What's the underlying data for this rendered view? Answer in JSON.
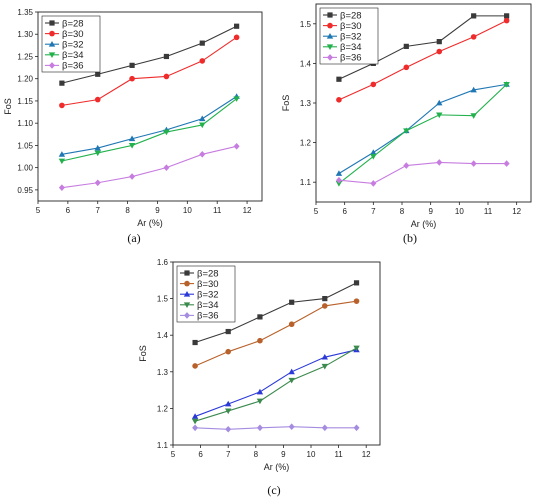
{
  "chart_data": [
    {
      "type": "line",
      "caption": "(a)",
      "xlabel": "Ar (%)",
      "ylabel": "FoS",
      "xlim": [
        5,
        12.5
      ],
      "ylim": [
        0.925,
        1.35
      ],
      "xticks": [
        5,
        6,
        7,
        8,
        9,
        10,
        11,
        12
      ],
      "yticks": [
        0.95,
        1.0,
        1.05,
        1.1,
        1.15,
        1.2,
        1.25,
        1.3,
        1.35
      ],
      "yticklabels": [
        "0.95",
        "1.00",
        "1.05",
        "1.10",
        "1.15",
        "1.20",
        "1.25",
        "1.30",
        "1.35"
      ],
      "legend_position": "top-left",
      "x": [
        5.8,
        7.0,
        8.15,
        9.3,
        10.5,
        11.65
      ],
      "series": [
        {
          "name": "β=28",
          "color": "#3a3a3a",
          "marker": "square",
          "values": [
            1.19,
            1.21,
            1.23,
            1.25,
            1.28,
            1.318
          ]
        },
        {
          "name": "β=30",
          "color": "#ef2b2b",
          "marker": "circle",
          "values": [
            1.14,
            1.153,
            1.2,
            1.205,
            1.24,
            1.293
          ]
        },
        {
          "name": "β=32",
          "color": "#1f77b4",
          "marker": "triangle-up",
          "values": [
            1.03,
            1.044,
            1.065,
            1.085,
            1.11,
            1.16
          ]
        },
        {
          "name": "β=34",
          "color": "#22b14c",
          "marker": "triangle-down",
          "values": [
            1.015,
            1.033,
            1.05,
            1.08,
            1.096,
            1.155
          ]
        },
        {
          "name": "β=36",
          "color": "#c77ce0",
          "marker": "diamond",
          "values": [
            0.955,
            0.966,
            0.98,
            1.0,
            1.03,
            1.048
          ]
        }
      ]
    },
    {
      "type": "line",
      "caption": "(b)",
      "xlabel": "Ar (%)",
      "ylabel": "FoS",
      "xlim": [
        5,
        12.5
      ],
      "ylim": [
        1.05,
        1.55
      ],
      "xticks": [
        5,
        6,
        7,
        8,
        9,
        10,
        11,
        12
      ],
      "yticks": [
        1.1,
        1.2,
        1.3,
        1.4,
        1.5
      ],
      "yticklabels": [
        "1.1",
        "1.2",
        "1.3",
        "1.4",
        "1.5"
      ],
      "legend_position": "top-left",
      "x": [
        5.8,
        7.0,
        8.15,
        9.3,
        10.5,
        11.65
      ],
      "series": [
        {
          "name": "β=28",
          "color": "#3a3a3a",
          "marker": "square",
          "values": [
            1.36,
            1.4,
            1.443,
            1.455,
            1.52,
            1.52
          ]
        },
        {
          "name": "β=30",
          "color": "#ef2b2b",
          "marker": "circle",
          "values": [
            1.308,
            1.347,
            1.39,
            1.43,
            1.467,
            1.508
          ]
        },
        {
          "name": "β=32",
          "color": "#1f77b4",
          "marker": "triangle-up",
          "values": [
            1.122,
            1.175,
            1.23,
            1.3,
            1.333,
            1.347
          ]
        },
        {
          "name": "β=34",
          "color": "#22b14c",
          "marker": "triangle-down",
          "values": [
            1.097,
            1.165,
            1.23,
            1.27,
            1.268,
            1.347
          ]
        },
        {
          "name": "β=36",
          "color": "#c77ce0",
          "marker": "diamond",
          "values": [
            1.105,
            1.097,
            1.142,
            1.15,
            1.147,
            1.147
          ]
        }
      ]
    },
    {
      "type": "line",
      "caption": "(c)",
      "xlabel": "Ar (%)",
      "ylabel": "FoS",
      "xlim": [
        5,
        12.5
      ],
      "ylim": [
        1.1,
        1.6
      ],
      "xticks": [
        5,
        6,
        7,
        8,
        9,
        10,
        11,
        12
      ],
      "yticks": [
        1.1,
        1.2,
        1.3,
        1.4,
        1.5,
        1.6
      ],
      "yticklabels": [
        "1.1",
        "1.2",
        "1.3",
        "1.4",
        "1.5",
        "1.6"
      ],
      "legend_position": "top-left",
      "x": [
        5.8,
        7.0,
        8.15,
        9.3,
        10.5,
        11.65
      ],
      "series": [
        {
          "name": "β=28",
          "color": "#3a3a3a",
          "marker": "square",
          "values": [
            1.38,
            1.41,
            1.45,
            1.49,
            1.5,
            1.543
          ]
        },
        {
          "name": "β=30",
          "color": "#b8612a",
          "marker": "circle",
          "values": [
            1.316,
            1.355,
            1.385,
            1.43,
            1.48,
            1.493
          ]
        },
        {
          "name": "β=32",
          "color": "#2a39d8",
          "marker": "triangle-up",
          "values": [
            1.178,
            1.212,
            1.245,
            1.3,
            1.34,
            1.36
          ]
        },
        {
          "name": "β=34",
          "color": "#3c8a4e",
          "marker": "triangle-down",
          "values": [
            1.165,
            1.193,
            1.22,
            1.277,
            1.315,
            1.365
          ]
        },
        {
          "name": "β=36",
          "color": "#a58ce0",
          "marker": "diamond",
          "values": [
            1.147,
            1.143,
            1.147,
            1.15,
            1.147,
            1.147
          ]
        }
      ]
    }
  ]
}
